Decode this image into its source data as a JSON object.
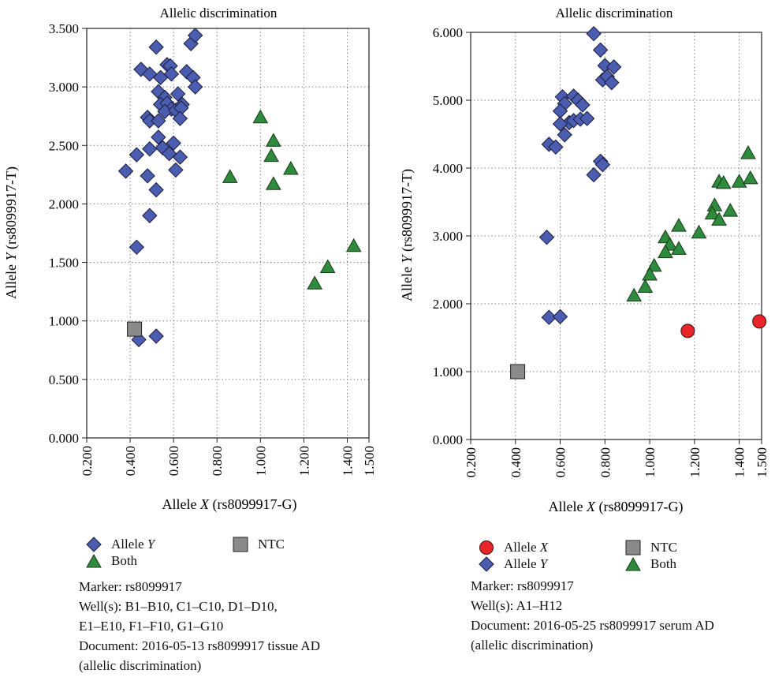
{
  "charts": [
    {
      "title": "Allelic discrimination",
      "xlabel_pre": "Allele ",
      "xlabel_var": "X",
      "xlabel_post": " (rs8099917-G)",
      "ylabel_pre": "Allele ",
      "ylabel_var": "Y",
      "ylabel_post": " (rs8099917-T)",
      "legend": {
        "allele_y": {
          "pre": "Allele ",
          "var": "Y"
        },
        "ntc": "NTC",
        "both": "Both"
      },
      "info": [
        "Marker: rs8099917",
        "Well(s): B1–B10, C1–C10, D1–D10,",
        "E1–E10, F1–F10, G1–G10",
        "Document: 2016-05-13 rs8099917 tissue AD",
        "(allelic discrimination)"
      ]
    },
    {
      "title": "Allelic discrimination",
      "xlabel_pre": "Allele ",
      "xlabel_var": "X",
      "xlabel_post": " (rs8099917-G)",
      "ylabel_pre": "Allele ",
      "ylabel_var": "Y",
      "ylabel_post": " (rs8099917-T)",
      "legend": {
        "allele_x": {
          "pre": "Allele ",
          "var": "X"
        },
        "allele_y": {
          "pre": "Allele ",
          "var": "Y"
        },
        "ntc": "NTC",
        "both": "Both"
      },
      "info": [
        "Marker: rs8099917",
        "Well(s): A1–H12",
        "Document: 2016-05-25 rs8099917 serum AD",
        "(allelic discrimination)"
      ]
    }
  ],
  "colors": {
    "allele_x": "#e8262a",
    "allele_y": "#4a5db0",
    "both": "#2e8b3e",
    "ntc": "#8a8a8a"
  },
  "chart_data": [
    {
      "type": "scatter",
      "title": "Allelic discrimination",
      "xlabel": "Allele X (rs8099917-G)",
      "ylabel": "Allele Y (rs8099917-T)",
      "xlim": [
        0.2,
        1.5
      ],
      "ylim": [
        0.0,
        3.5
      ],
      "xticks": [
        0.2,
        0.4,
        0.6,
        0.8,
        1.0,
        1.2,
        1.4,
        1.5
      ],
      "xtick_labels": [
        "0.200",
        "0.400",
        "0.600",
        "0.800",
        "1.000",
        "1.200",
        "1.400",
        "1.500"
      ],
      "yticks": [
        0.0,
        0.5,
        1.0,
        1.5,
        2.0,
        2.5,
        3.0,
        3.5
      ],
      "ytick_labels": [
        "0.000",
        "0.500",
        "1.000",
        "1.500",
        "2.000",
        "2.500",
        "3.000",
        "3.500"
      ],
      "grid": true,
      "series": [
        {
          "name": "Allele Y",
          "marker": "diamond",
          "color": "#4a5db0",
          "points": [
            [
              0.52,
              3.34
            ],
            [
              0.45,
              3.15
            ],
            [
              0.49,
              3.11
            ],
            [
              0.54,
              3.08
            ],
            [
              0.57,
              3.19
            ],
            [
              0.585,
              3.18
            ],
            [
              0.59,
              3.11
            ],
            [
              0.66,
              3.13
            ],
            [
              0.68,
              3.37
            ],
            [
              0.7,
              3.44
            ],
            [
              0.69,
              3.08
            ],
            [
              0.7,
              3.0
            ],
            [
              0.53,
              2.96
            ],
            [
              0.56,
              2.91
            ],
            [
              0.54,
              2.85
            ],
            [
              0.57,
              2.86
            ],
            [
              0.59,
              2.81
            ],
            [
              0.56,
              2.79
            ],
            [
              0.61,
              2.8
            ],
            [
              0.62,
              2.94
            ],
            [
              0.64,
              2.85
            ],
            [
              0.635,
              2.82
            ],
            [
              0.63,
              2.73
            ],
            [
              0.48,
              2.74
            ],
            [
              0.49,
              2.71
            ],
            [
              0.53,
              2.71
            ],
            [
              0.53,
              2.57
            ],
            [
              0.55,
              2.48
            ],
            [
              0.49,
              2.47
            ],
            [
              0.43,
              2.42
            ],
            [
              0.58,
              2.43
            ],
            [
              0.6,
              2.52
            ],
            [
              0.63,
              2.4
            ],
            [
              0.48,
              2.24
            ],
            [
              0.61,
              2.29
            ],
            [
              0.38,
              2.28
            ],
            [
              0.52,
              2.12
            ],
            [
              0.49,
              1.9
            ],
            [
              0.43,
              1.63
            ],
            [
              0.44,
              0.84
            ],
            [
              0.52,
              0.87
            ]
          ]
        },
        {
          "name": "NTC",
          "marker": "square",
          "color": "#8a8a8a",
          "points": [
            [
              0.42,
              0.93
            ]
          ]
        },
        {
          "name": "Both",
          "marker": "triangle",
          "color": "#2e8b3e",
          "points": [
            [
              1.0,
              2.74
            ],
            [
              1.06,
              2.54
            ],
            [
              1.05,
              2.41
            ],
            [
              1.06,
              2.17
            ],
            [
              1.14,
              2.3
            ],
            [
              0.86,
              2.23
            ],
            [
              1.43,
              1.64
            ],
            [
              1.31,
              1.46
            ],
            [
              1.25,
              1.32
            ]
          ]
        }
      ]
    },
    {
      "type": "scatter",
      "title": "Allelic discrimination",
      "xlabel": "Allele X (rs8099917-G)",
      "ylabel": "Allele Y (rs8099917-T)",
      "xlim": [
        0.2,
        1.5
      ],
      "ylim": [
        0.0,
        6.0
      ],
      "xticks": [
        0.2,
        0.4,
        0.6,
        0.8,
        1.0,
        1.2,
        1.4,
        1.5
      ],
      "xtick_labels": [
        "0.200",
        "0.400",
        "0.600",
        "0.800",
        "1.000",
        "1.200",
        "1.400",
        "1.500"
      ],
      "yticks": [
        0.0,
        1.0,
        2.0,
        3.0,
        4.0,
        5.0,
        6.0
      ],
      "ytick_labels": [
        "0.000",
        "1.000",
        "2.000",
        "3.000",
        "4.000",
        "5.000",
        "6.000"
      ],
      "grid": true,
      "series": [
        {
          "name": "Allele X",
          "marker": "circle",
          "color": "#e8262a",
          "points": [
            [
              1.17,
              1.6
            ],
            [
              1.49,
              1.74
            ]
          ]
        },
        {
          "name": "Allele Y",
          "marker": "diamond",
          "color": "#4a5db0",
          "points": [
            [
              0.75,
              5.98
            ],
            [
              0.78,
              5.74
            ],
            [
              0.8,
              5.51
            ],
            [
              0.84,
              5.49
            ],
            [
              0.79,
              5.3
            ],
            [
              0.81,
              5.35
            ],
            [
              0.83,
              5.26
            ],
            [
              0.61,
              5.05
            ],
            [
              0.66,
              5.06
            ],
            [
              0.68,
              5.0
            ],
            [
              0.7,
              4.93
            ],
            [
              0.62,
              4.95
            ],
            [
              0.6,
              4.84
            ],
            [
              0.64,
              4.67
            ],
            [
              0.66,
              4.7
            ],
            [
              0.69,
              4.72
            ],
            [
              0.72,
              4.73
            ],
            [
              0.6,
              4.65
            ],
            [
              0.62,
              4.49
            ],
            [
              0.55,
              4.35
            ],
            [
              0.58,
              4.31
            ],
            [
              0.78,
              4.1
            ],
            [
              0.79,
              4.05
            ],
            [
              0.75,
              3.9
            ],
            [
              0.54,
              2.98
            ],
            [
              0.55,
              1.8
            ],
            [
              0.6,
              1.81
            ]
          ]
        },
        {
          "name": "NTC",
          "marker": "square",
          "color": "#8a8a8a",
          "points": [
            [
              0.41,
              1.0
            ]
          ]
        },
        {
          "name": "Both",
          "marker": "triangle",
          "color": "#2e8b3e",
          "points": [
            [
              1.44,
              4.22
            ],
            [
              1.31,
              3.8
            ],
            [
              1.33,
              3.78
            ],
            [
              1.4,
              3.8
            ],
            [
              1.45,
              3.85
            ],
            [
              1.29,
              3.45
            ],
            [
              1.36,
              3.37
            ],
            [
              1.28,
              3.33
            ],
            [
              1.31,
              3.24
            ],
            [
              1.22,
              3.05
            ],
            [
              1.13,
              3.15
            ],
            [
              1.07,
              2.98
            ],
            [
              1.09,
              2.87
            ],
            [
              1.13,
              2.81
            ],
            [
              1.07,
              2.76
            ],
            [
              1.02,
              2.56
            ],
            [
              1.0,
              2.43
            ],
            [
              0.98,
              2.25
            ],
            [
              0.93,
              2.12
            ]
          ]
        }
      ]
    }
  ]
}
